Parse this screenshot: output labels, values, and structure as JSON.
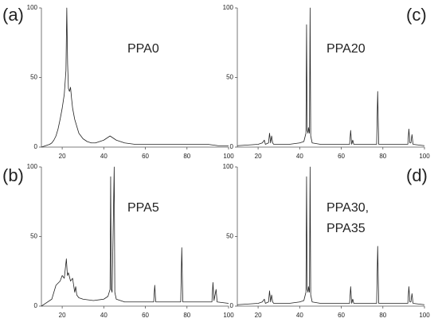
{
  "chart_data": [
    {
      "type": "line",
      "title": "(a)",
      "annotation": [
        "PPA0"
      ],
      "color": "#222222",
      "x": [
        10,
        12,
        14,
        15,
        16,
        17,
        18,
        19,
        20,
        21,
        21.8,
        22.2,
        22.6,
        23,
        23.5,
        24,
        24.5,
        25,
        26,
        27,
        28,
        30,
        32,
        34,
        36,
        38,
        40,
        42,
        43,
        44,
        46,
        48,
        50,
        55,
        60,
        65,
        70,
        75,
        80,
        85,
        90,
        95,
        100
      ],
      "values": [
        0,
        1,
        2,
        3,
        5,
        8,
        13,
        20,
        28,
        38,
        55,
        100,
        60,
        42,
        40,
        43,
        35,
        28,
        20,
        15,
        10,
        6,
        4,
        3,
        3,
        4,
        5,
        7,
        8,
        7,
        5,
        4,
        3,
        2,
        2,
        2,
        2,
        2,
        2,
        2,
        2,
        1,
        1
      ],
      "xlim": [
        10,
        100
      ],
      "ylim": [
        0,
        100
      ],
      "xticks": [
        20,
        40,
        60,
        80,
        100
      ],
      "yticks": [
        0,
        50,
        100
      ]
    },
    {
      "type": "line",
      "title": "(b)",
      "annotation": [
        "PPA5"
      ],
      "color": "#222222",
      "x": [
        10,
        15,
        17,
        19,
        20,
        21,
        22,
        22.5,
        23,
        24,
        25,
        26,
        26.5,
        27,
        28,
        30,
        35,
        40,
        42,
        43,
        43.3,
        43.6,
        44,
        45,
        45.3,
        46,
        50,
        55,
        60,
        64,
        64.5,
        65,
        70,
        77,
        77.5,
        78,
        85,
        92,
        92.5,
        93,
        94,
        94.5,
        100
      ],
      "values": [
        0,
        5,
        15,
        18,
        22,
        20,
        34,
        22,
        24,
        18,
        20,
        10,
        14,
        8,
        6,
        5,
        4,
        5,
        7,
        12,
        93,
        12,
        10,
        100,
        10,
        5,
        3,
        3,
        3,
        3,
        15,
        3,
        3,
        3,
        42,
        3,
        3,
        3,
        17,
        4,
        12,
        3,
        2
      ],
      "xlim": [
        10,
        100
      ],
      "ylim": [
        0,
        100
      ],
      "xticks": [
        20,
        40,
        60,
        80,
        100
      ],
      "yticks": [
        0,
        50,
        100
      ]
    },
    {
      "type": "line",
      "title": "(c)",
      "annotation": [
        "PPA20"
      ],
      "color": "#222222",
      "x": [
        10,
        20,
        22,
        23,
        23.5,
        25,
        25.5,
        26,
        26.5,
        27,
        27.5,
        30,
        35,
        40,
        42,
        43,
        43.3,
        43.6,
        44,
        44.2,
        44.7,
        45,
        45.3,
        46,
        50,
        55,
        60,
        64,
        64.5,
        65,
        65.5,
        66,
        70,
        77,
        77.5,
        78,
        85,
        92,
        92.5,
        93,
        93.5,
        94,
        94.5,
        100
      ],
      "values": [
        1,
        2,
        3,
        5,
        2,
        3,
        10,
        3,
        8,
        3,
        2,
        2,
        2,
        3,
        4,
        10,
        88,
        12,
        10,
        14,
        10,
        100,
        8,
        3,
        2,
        2,
        2,
        2,
        12,
        2,
        5,
        2,
        2,
        2,
        40,
        2,
        2,
        2,
        13,
        3,
        3,
        9,
        2,
        1
      ],
      "xlim": [
        10,
        100
      ],
      "ylim": [
        0,
        100
      ],
      "xticks": [
        20,
        40,
        60,
        80,
        100
      ],
      "yticks": [
        0,
        50,
        100
      ]
    },
    {
      "type": "line",
      "title": "(d)",
      "annotation": [
        "PPA30,",
        "PPA35"
      ],
      "color": "#222222",
      "x": [
        10,
        20,
        22,
        23,
        23.5,
        25,
        25.5,
        26,
        26.5,
        27,
        27.5,
        30,
        35,
        40,
        42,
        43,
        43.3,
        43.6,
        44,
        44.2,
        44.7,
        45,
        45.3,
        46,
        50,
        55,
        60,
        64,
        64.5,
        65,
        65.5,
        66,
        70,
        77,
        77.5,
        78,
        85,
        92,
        92.5,
        93,
        93.5,
        94,
        94.5,
        100
      ],
      "values": [
        1,
        2,
        3,
        5,
        2,
        3,
        11,
        3,
        8,
        3,
        2,
        2,
        2,
        3,
        4,
        10,
        93,
        12,
        10,
        14,
        10,
        100,
        8,
        3,
        2,
        2,
        2,
        2,
        14,
        2,
        5,
        2,
        2,
        2,
        43,
        2,
        2,
        2,
        14,
        3,
        3,
        9,
        2,
        1
      ],
      "xlim": [
        10,
        100
      ],
      "ylim": [
        0,
        100
      ],
      "xticks": [
        20,
        40,
        60,
        80,
        100
      ],
      "yticks": [
        0,
        50,
        100
      ]
    }
  ]
}
